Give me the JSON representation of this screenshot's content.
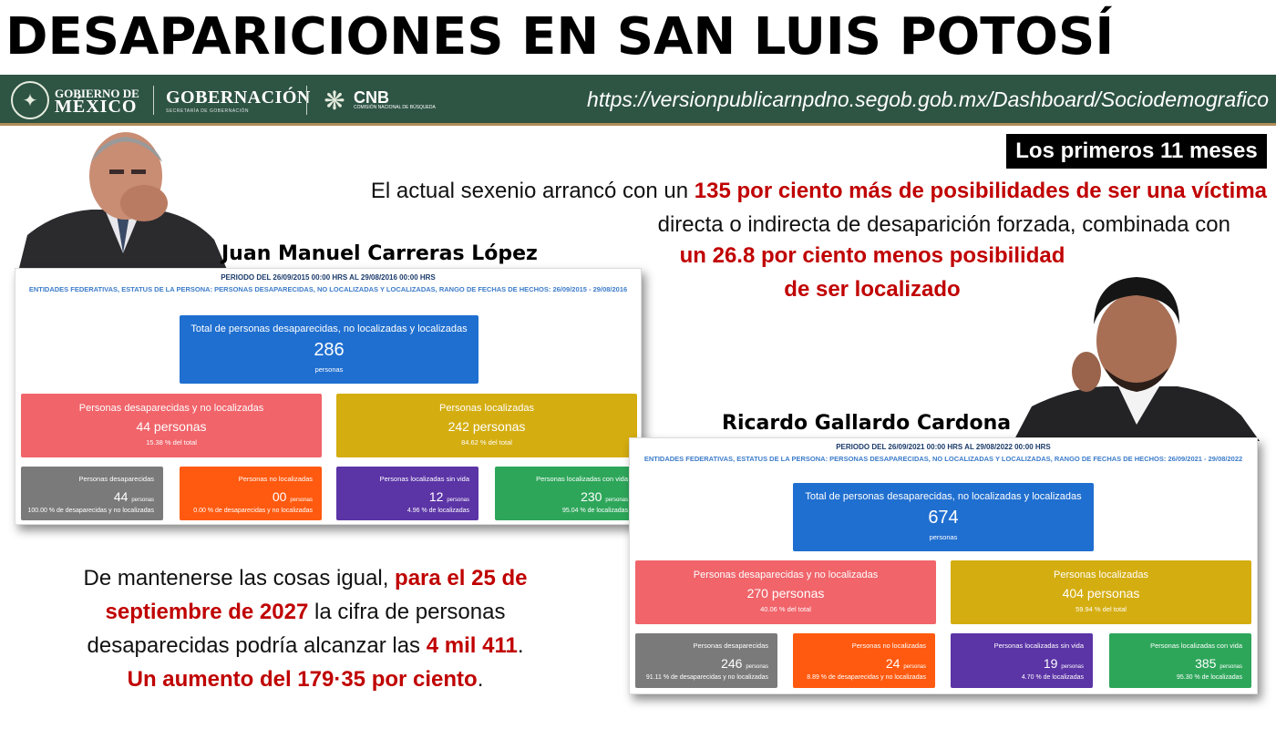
{
  "title": "DESAPARICIONES EN SAN LUIS POTOSÍ",
  "gov_bar": {
    "gobierno_line1": "GOBIERNO DE",
    "gobierno_line2": "MÉXICO",
    "gobernacion": "GOBERNACIÓN",
    "gobernacion_sub": "SECRETARÍA DE GOBERNACIÓN",
    "cnb": "CNB",
    "cnb_sub": "COMISIÓN NACIONAL DE BÚSQUEDA",
    "url": "https://versionpublicarnpdno.segob.gob.mx/Dashboard/Sociodemografico"
  },
  "badge": "Los primeros 11 meses",
  "intro": {
    "t1": "El actual sexenio arrancó con un ",
    "h1": "135 por ciento más de posibilidades de ser una víctima",
    "t2": "directa o indirecta de desaparición forzada, combinada con",
    "h2": "un 26.8 por ciento menos posibilidad",
    "h3": "de ser localizado"
  },
  "person1_name": "Juan Manuel Carreras López",
  "person2_name": "Ricardo Gallardo Cardona",
  "projection": {
    "t1": "De mantenerse las cosas igual, ",
    "h1": "para el 25 de",
    "h2": "septiembre de 2027",
    "t2": " la cifra de personas",
    "t3": "desaparecidas podría alcanzar las ",
    "h3": "4 mil 411",
    "t4": ".",
    "h4": "Un aumento del 179·35 por ciento",
    "t5": "."
  },
  "dash1": {
    "period": "PERIODO DEL 26/09/2015 00:00 HRS AL 29/08/2016 00:00 HRS",
    "filter": "ENTIDADES FEDERATIVAS, ESTATUS DE LA PERSONA: PERSONAS DESAPARECIDAS, NO LOCALIZADAS Y LOCALIZADAS, RANGO DE FECHAS DE HECHOS: 26/09/2015 - 29/08/2016",
    "total_label": "Total de personas desaparecidas, no localizadas y localizadas",
    "total": "286",
    "total_unit": "personas",
    "desap_label": "Personas desaparecidas y no localizadas",
    "desap_value": "44 personas",
    "desap_pct": "15.38 % del total",
    "loc_label": "Personas localizadas",
    "loc_value": "242 personas",
    "loc_pct": "84.62 % del total",
    "s1_label": "Personas desaparecidas",
    "s1_value": "44",
    "s1_pct": "100.00 % de desaparecidas y no localizadas",
    "s2_label": "Personas no localizadas",
    "s2_value": "00",
    "s2_pct": "0.00 % de desaparecidas y no localizadas",
    "s3_label": "Personas localizadas sin vida",
    "s3_value": "12",
    "s3_pct": "4.96 % de localizadas",
    "s4_label": "Personas localizadas con vida",
    "s4_value": "230",
    "s4_pct": "95.04 % de localizadas",
    "unit": "personas"
  },
  "dash2": {
    "period": "PERIODO DEL 26/09/2021 00:00 HRS AL 29/08/2022 00:00 HRS",
    "filter": "ENTIDADES FEDERATIVAS, ESTATUS DE LA PERSONA: PERSONAS DESAPARECIDAS, NO LOCALIZADAS Y LOCALIZADAS, RANGO DE FECHAS DE HECHOS: 26/09/2021 - 29/08/2022",
    "total_label": "Total de personas desaparecidas, no localizadas y localizadas",
    "total": "674",
    "total_unit": "personas",
    "desap_label": "Personas desaparecidas y no localizadas",
    "desap_value": "270 personas",
    "desap_pct": "40.06 % del total",
    "loc_label": "Personas localizadas",
    "loc_value": "404 personas",
    "loc_pct": "59.94 % del total",
    "s1_label": "Personas desaparecidas",
    "s1_value": "246",
    "s1_pct": "91.11 % de desaparecidas y no localizadas",
    "s2_label": "Personas no localizadas",
    "s2_value": "24",
    "s2_pct": "8.89 % de desaparecidas y no localizadas",
    "s3_label": "Personas localizadas sin vida",
    "s3_value": "19",
    "s3_pct": "4.70 % de localizadas",
    "s4_label": "Personas localizadas con vida",
    "s4_value": "385",
    "s4_pct": "95.30 % de localizadas",
    "unit": "personas"
  }
}
